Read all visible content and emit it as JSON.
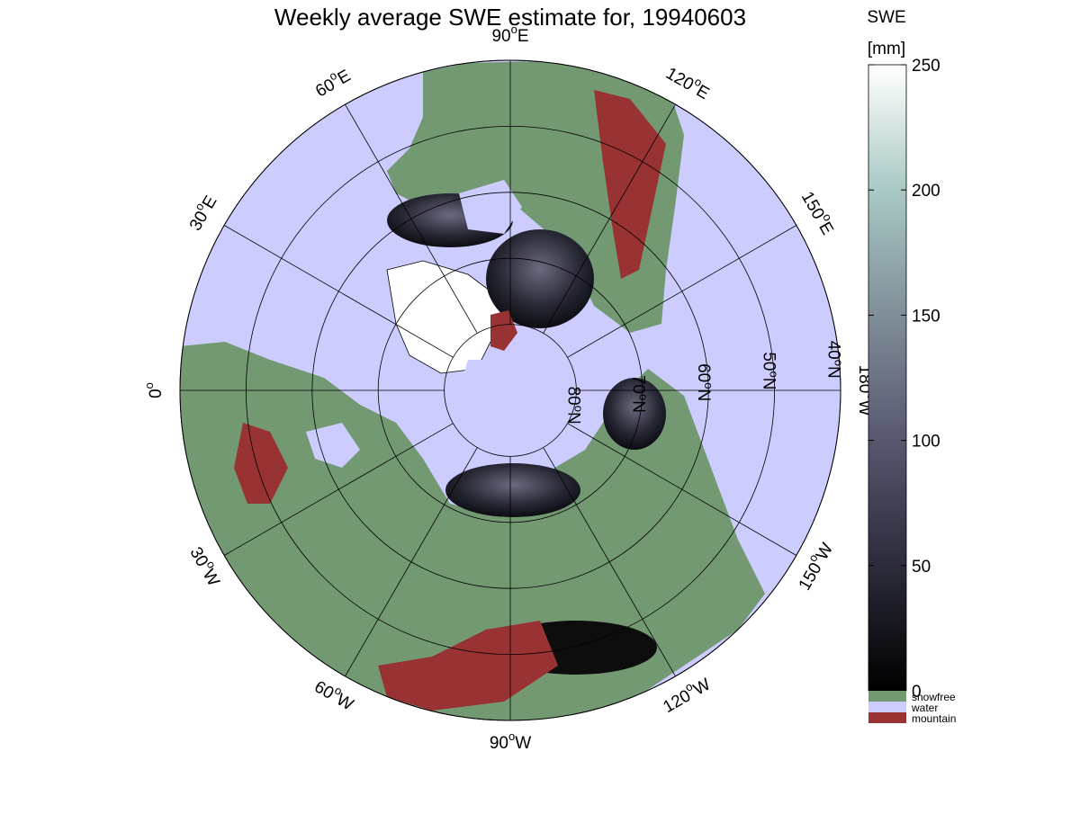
{
  "title": "Weekly average SWE estimate for, 19940603",
  "map": {
    "projection": "north polar stereographic",
    "longitude_labels": [
      {
        "text": "90",
        "sup": "o",
        "hemi": "W",
        "lon": -90
      },
      {
        "text": "60",
        "sup": "o",
        "hemi": "W",
        "lon": -60
      },
      {
        "text": "30",
        "sup": "o",
        "hemi": "W",
        "lon": -30
      },
      {
        "text": "0",
        "sup": "o",
        "hemi": "",
        "lon": 0
      },
      {
        "text": "30",
        "sup": "o",
        "hemi": "E",
        "lon": 30
      },
      {
        "text": "60",
        "sup": "o",
        "hemi": "E",
        "lon": 60
      },
      {
        "text": "90",
        "sup": "o",
        "hemi": "E",
        "lon": 90
      },
      {
        "text": "120",
        "sup": "o",
        "hemi": "E",
        "lon": 120
      },
      {
        "text": "150",
        "sup": "o",
        "hemi": "E",
        "lon": 150
      },
      {
        "text": "180",
        "sup": "o",
        "hemi": "W",
        "lon": 180
      },
      {
        "text": "150",
        "sup": "o",
        "hemi": "W",
        "lon": -150
      },
      {
        "text": "120",
        "sup": "o",
        "hemi": "W",
        "lon": -120
      }
    ],
    "latitude_labels": [
      {
        "text": "80",
        "sup": "o",
        "hemi": "N",
        "lat": 80
      },
      {
        "text": "70",
        "sup": "o",
        "hemi": "N",
        "lat": 70
      },
      {
        "text": "60",
        "sup": "o",
        "hemi": "N",
        "lat": 60
      },
      {
        "text": "50",
        "sup": "o",
        "hemi": "N",
        "lat": 50
      },
      {
        "text": "40",
        "sup": "o",
        "hemi": "N",
        "lat": 40
      }
    ],
    "lat_circles": [
      80,
      70,
      60,
      50,
      40
    ],
    "colors": {
      "water": "#ccccff",
      "snowfree": "#739973",
      "mountain": "#993333",
      "snow_low": "#0a0a10",
      "snow_mid": "#4d4d66",
      "snow_high": "#ffffff"
    }
  },
  "colorbar": {
    "title_line1": "SWE",
    "title_line2": "[mm]",
    "ticks": [
      "0",
      "50",
      "100",
      "150",
      "200",
      "250"
    ],
    "range": [
      0,
      250
    ],
    "categories": [
      "snowfree",
      "water",
      "mountain"
    ]
  },
  "chart_data": {
    "type": "heatmap",
    "title": "Weekly average SWE estimate for, 19940603",
    "colorbar_label": "SWE [mm]",
    "colorbar_range": [
      0,
      250
    ],
    "colorbar_ticks": [
      0,
      50,
      100,
      150,
      200,
      250
    ],
    "categories": [
      "snowfree",
      "water",
      "mountain"
    ]
  }
}
